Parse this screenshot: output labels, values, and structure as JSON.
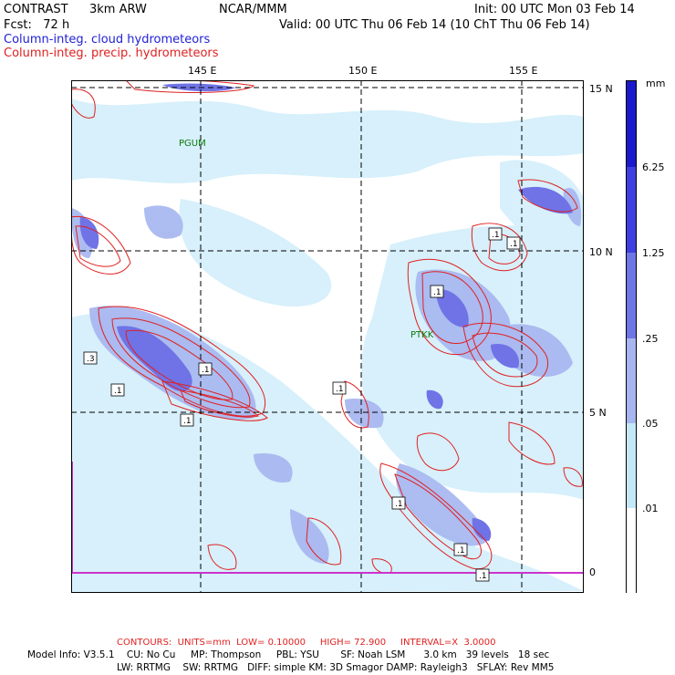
{
  "header": {
    "model": "CONTRAST",
    "grid": "3km ARW",
    "org": "NCAR/MMM",
    "init": "Init: 00 UTC Mon 03 Feb 14",
    "fcst": "Fcst:   72 h",
    "valid": "Valid: 00 UTC Thu 06 Feb 14 (10 ChT Thu 06 Feb 14)",
    "field_blue": "Column-integ. cloud hydrometeors",
    "field_red": "Column-integ. precip. hydrometeors"
  },
  "map": {
    "lon_labels": [
      "145 E",
      "150 E",
      "155 E"
    ],
    "lat_labels": [
      "15 N",
      "10 N",
      "5 N",
      "0"
    ],
    "stations": [
      "PGUM",
      "PTKK"
    ],
    "contour_labels": [
      ".1",
      ".1",
      ".1",
      ".3",
      ".1",
      ".1",
      ".1",
      ".1",
      ".1",
      ".1",
      ".1"
    ],
    "colors": {
      "cloud_light": "#d7f0fb",
      "cloud_mid": "#a9b8f0",
      "cloud_dark": "#6f73e6",
      "precip_contour": "#e02020",
      "station": "#0a7a0a",
      "border": "#cc33cc"
    }
  },
  "legend": {
    "unit": "mm",
    "ticks": [
      "6.25",
      "1.25",
      ".25",
      ".05",
      ".01"
    ],
    "colors": [
      "#ffffff",
      "#e0f6fb",
      "#c4e8f7",
      "#a8b6ef",
      "#6f76e6",
      "#3f3fe0",
      "#1a1acc"
    ]
  },
  "footer": {
    "contours": "CONTOURS:  UNITS=mm  LOW= 0.10000     HIGH= 72.900     INTERVAL=X  3.0000",
    "line1": "Model Info: V3.5.1    CU: No Cu     MP: Thompson     PBL: YSU       SF: Noah LSM      3.0 km   39 levels   18 sec",
    "line2": "LW: RRTMG    SW: RRTMG   DIFF: simple KM: 3D Smagor DAMP: Rayleigh3   SFLAY: Rev MM5"
  }
}
